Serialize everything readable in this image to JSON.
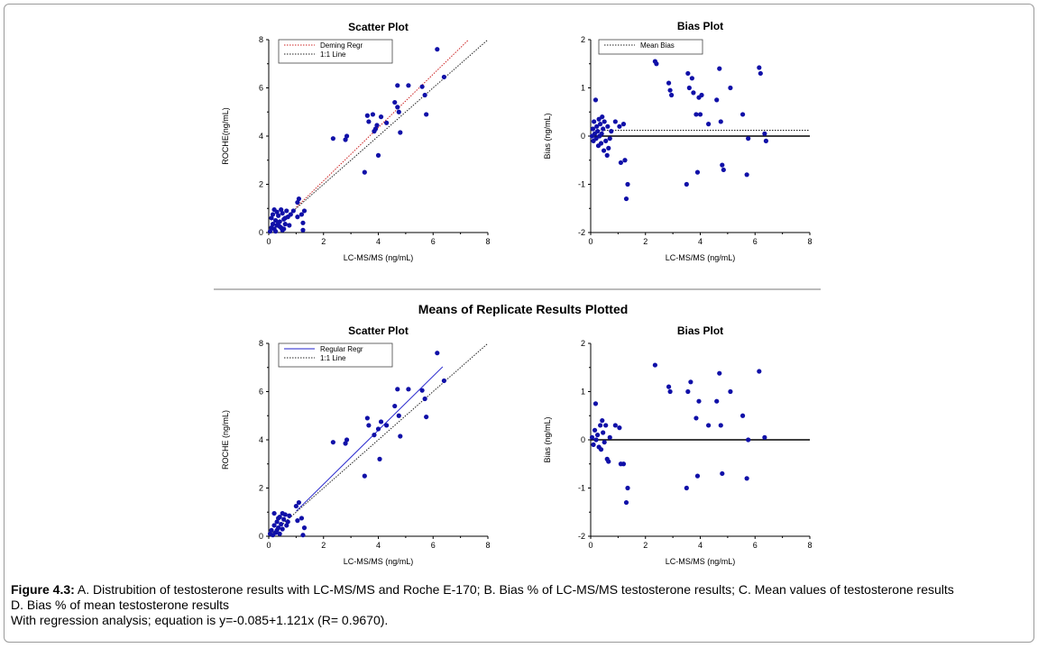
{
  "section_title": "Means of Replicate Results Plotted",
  "caption": {
    "label": "Figure 4.3:",
    "text1": " A. Distrubition of testosterone results with LC-MS/MS and Roche E-170; B. Bias % of LC-MS/MS testosterone results; C. Mean values of testosterone results",
    "text2": "D. Bias % of mean testosterone results",
    "text3": "With regression analysis; equation is y=-0.085+1.121x (R= 0.9670)."
  },
  "colors": {
    "points": "#1010a8",
    "deming": "#cc2222",
    "regular": "#2222cc",
    "identity": "#222222"
  },
  "chart_data": [
    {
      "id": "A",
      "type": "scatter",
      "title": "Scatter Plot",
      "xlabel": "LC-MS/MS (ng/mL)",
      "ylabel": "ROCHE(ng/mL)",
      "xlim": [
        0,
        8
      ],
      "ylim": [
        0,
        8
      ],
      "xticks": [
        "0",
        "2",
        "4",
        "6",
        "8"
      ],
      "yticks": [
        "0",
        "2",
        "4",
        "6",
        "8"
      ],
      "legend": [
        {
          "name": "Deming Regr",
          "style": "deming"
        },
        {
          "name": "1:1 Line",
          "style": "identity"
        }
      ],
      "lines": [
        {
          "style": "deming",
          "x1": 1.0,
          "y1": 1.04,
          "x2": 7.3,
          "y2": 8.0
        },
        {
          "style": "identity",
          "x1": 0,
          "y1": 0,
          "x2": 8,
          "y2": 8
        }
      ],
      "points": [
        [
          0.05,
          0.05
        ],
        [
          0.1,
          0.2
        ],
        [
          0.15,
          0.35
        ],
        [
          0.2,
          0.15
        ],
        [
          0.25,
          0.5
        ],
        [
          0.1,
          0.6
        ],
        [
          0.3,
          0.3
        ],
        [
          0.35,
          0.7
        ],
        [
          0.4,
          0.45
        ],
        [
          0.45,
          0.2
        ],
        [
          0.5,
          0.8
        ],
        [
          0.55,
          0.55
        ],
        [
          0.6,
          0.35
        ],
        [
          0.65,
          0.9
        ],
        [
          0.7,
          0.65
        ],
        [
          0.2,
          0.95
        ],
        [
          0.3,
          0.85
        ],
        [
          0.4,
          0.25
        ],
        [
          0.5,
          0.1
        ],
        [
          0.15,
          0.75
        ],
        [
          0.25,
          0.05
        ],
        [
          0.35,
          0.4
        ],
        [
          0.6,
          0.6
        ],
        [
          0.75,
          0.3
        ],
        [
          0.8,
          0.75
        ],
        [
          0.9,
          0.9
        ],
        [
          0.45,
          0.95
        ],
        [
          0.55,
          0.15
        ],
        [
          1.05,
          1.25
        ],
        [
          1.1,
          1.4
        ],
        [
          1.05,
          0.65
        ],
        [
          1.2,
          0.75
        ],
        [
          1.25,
          0.1
        ],
        [
          1.25,
          0.4
        ],
        [
          1.3,
          0.9
        ],
        [
          2.35,
          3.9
        ],
        [
          2.8,
          3.85
        ],
        [
          2.85,
          4.0
        ],
        [
          3.5,
          2.5
        ],
        [
          3.6,
          4.85
        ],
        [
          3.65,
          4.6
        ],
        [
          3.8,
          4.9
        ],
        [
          3.9,
          4.3
        ],
        [
          3.95,
          4.45
        ],
        [
          4.0,
          3.2
        ],
        [
          4.1,
          4.8
        ],
        [
          4.3,
          4.55
        ],
        [
          4.6,
          5.4
        ],
        [
          4.7,
          6.1
        ],
        [
          4.75,
          5.0
        ],
        [
          4.8,
          4.15
        ],
        [
          5.1,
          6.1
        ],
        [
          5.6,
          6.05
        ],
        [
          5.7,
          5.7
        ],
        [
          5.75,
          4.9
        ],
        [
          6.15,
          7.6
        ],
        [
          6.4,
          6.45
        ],
        [
          3.85,
          4.2
        ],
        [
          4.7,
          5.2
        ]
      ]
    },
    {
      "id": "B",
      "type": "scatter",
      "title": "Bias Plot",
      "xlabel": "LC-MS/MS (ng/mL)",
      "ylabel": "Bias (ng/mL)",
      "xlim": [
        0,
        8
      ],
      "ylim": [
        -2,
        2
      ],
      "xticks": [
        "0",
        "2",
        "4",
        "6",
        "8"
      ],
      "yticks": [
        "-2",
        "-1",
        "0",
        "1",
        "2"
      ],
      "legend": [
        {
          "name": "Mean Bias",
          "style": "identity"
        }
      ],
      "hlines": [
        {
          "y": 0,
          "style": "solid"
        },
        {
          "y": 0.12,
          "style": "dotted"
        }
      ],
      "points": [
        [
          0.05,
          0.0
        ],
        [
          0.08,
          0.15
        ],
        [
          0.1,
          -0.1
        ],
        [
          0.12,
          0.3
        ],
        [
          0.15,
          0.05
        ],
        [
          0.18,
          0.75
        ],
        [
          0.2,
          -0.05
        ],
        [
          0.22,
          0.2
        ],
        [
          0.25,
          0.1
        ],
        [
          0.28,
          -0.2
        ],
        [
          0.3,
          0.35
        ],
        [
          0.32,
          0.0
        ],
        [
          0.35,
          0.25
        ],
        [
          0.38,
          -0.15
        ],
        [
          0.4,
          0.05
        ],
        [
          0.42,
          0.4
        ],
        [
          0.45,
          0.15
        ],
        [
          0.48,
          -0.3
        ],
        [
          0.5,
          0.3
        ],
        [
          0.55,
          -0.1
        ],
        [
          0.6,
          -0.4
        ],
        [
          0.62,
          0.2
        ],
        [
          0.65,
          -0.25
        ],
        [
          0.7,
          -0.05
        ],
        [
          0.75,
          0.1
        ],
        [
          0.9,
          0.3
        ],
        [
          1.05,
          0.2
        ],
        [
          1.1,
          -0.55
        ],
        [
          1.2,
          0.25
        ],
        [
          1.25,
          -0.5
        ],
        [
          1.3,
          -1.3
        ],
        [
          1.35,
          -1.0
        ],
        [
          2.35,
          1.55
        ],
        [
          2.4,
          1.5
        ],
        [
          2.85,
          1.1
        ],
        [
          2.9,
          0.95
        ],
        [
          2.95,
          0.85
        ],
        [
          3.5,
          -1.0
        ],
        [
          3.55,
          1.3
        ],
        [
          3.6,
          1.0
        ],
        [
          3.7,
          1.2
        ],
        [
          3.75,
          0.9
        ],
        [
          3.85,
          0.45
        ],
        [
          3.9,
          -0.75
        ],
        [
          3.95,
          0.8
        ],
        [
          4.0,
          0.45
        ],
        [
          4.05,
          0.85
        ],
        [
          4.3,
          0.25
        ],
        [
          4.6,
          0.75
        ],
        [
          4.7,
          1.4
        ],
        [
          4.75,
          0.3
        ],
        [
          4.8,
          -0.6
        ],
        [
          4.85,
          -0.7
        ],
        [
          5.1,
          1.0
        ],
        [
          5.55,
          0.45
        ],
        [
          5.7,
          -0.8
        ],
        [
          5.75,
          -0.05
        ],
        [
          6.15,
          1.42
        ],
        [
          6.2,
          1.3
        ],
        [
          6.35,
          0.05
        ],
        [
          6.4,
          -0.1
        ]
      ]
    },
    {
      "id": "C",
      "type": "scatter",
      "title": "Scatter  Plot",
      "xlabel": "LC-MS/MS (ng/mL)",
      "ylabel": "ROCHE (ng/mL)",
      "xlim": [
        0,
        8
      ],
      "ylim": [
        0,
        8
      ],
      "xticks": [
        "0",
        "2",
        "4",
        "6",
        "8"
      ],
      "yticks": [
        "0",
        "2",
        "4",
        "6",
        "8"
      ],
      "legend": [
        {
          "name": "Regular Regr",
          "style": "regular"
        },
        {
          "name": "1:1 Line",
          "style": "identity"
        }
      ],
      "lines": [
        {
          "style": "regular",
          "x1": 1.0,
          "y1": 1.04,
          "x2": 6.35,
          "y2": 7.03
        },
        {
          "style": "identity",
          "x1": 0,
          "y1": 0,
          "x2": 8,
          "y2": 8
        }
      ],
      "points": [
        [
          0.05,
          0.1
        ],
        [
          0.1,
          0.25
        ],
        [
          0.15,
          0.05
        ],
        [
          0.2,
          0.45
        ],
        [
          0.25,
          0.15
        ],
        [
          0.3,
          0.6
        ],
        [
          0.35,
          0.35
        ],
        [
          0.4,
          0.8
        ],
        [
          0.45,
          0.5
        ],
        [
          0.5,
          0.3
        ],
        [
          0.55,
          0.7
        ],
        [
          0.6,
          0.9
        ],
        [
          0.65,
          0.45
        ],
        [
          0.7,
          0.6
        ],
        [
          0.75,
          0.85
        ],
        [
          0.2,
          0.95
        ],
        [
          0.3,
          0.25
        ],
        [
          0.4,
          0.1
        ],
        [
          0.5,
          0.95
        ],
        [
          0.35,
          0.75
        ],
        [
          1.0,
          1.25
        ],
        [
          1.1,
          1.4
        ],
        [
          1.05,
          0.65
        ],
        [
          1.2,
          0.75
        ],
        [
          1.25,
          0.05
        ],
        [
          1.3,
          0.35
        ],
        [
          2.35,
          3.9
        ],
        [
          2.8,
          3.85
        ],
        [
          2.85,
          4.0
        ],
        [
          3.5,
          2.5
        ],
        [
          3.6,
          4.9
        ],
        [
          3.65,
          4.6
        ],
        [
          3.85,
          4.2
        ],
        [
          4.0,
          4.45
        ],
        [
          4.05,
          3.2
        ],
        [
          4.1,
          4.75
        ],
        [
          4.3,
          4.6
        ],
        [
          4.6,
          5.4
        ],
        [
          4.7,
          6.1
        ],
        [
          4.75,
          5.0
        ],
        [
          4.8,
          4.15
        ],
        [
          5.1,
          6.1
        ],
        [
          5.6,
          6.05
        ],
        [
          5.7,
          5.7
        ],
        [
          5.75,
          4.95
        ],
        [
          6.15,
          7.6
        ],
        [
          6.4,
          6.45
        ]
      ]
    },
    {
      "id": "D",
      "type": "scatter",
      "title": "Bias Plot",
      "xlabel": "LC-MS/MS (ng/mL)",
      "ylabel": "Bias (ng/mL)",
      "xlim": [
        0,
        8
      ],
      "ylim": [
        -2,
        2
      ],
      "xticks": [
        "0",
        "2",
        "4",
        "6",
        "8"
      ],
      "yticks": [
        "-2",
        "-1",
        "0",
        "1",
        "2"
      ],
      "legend": [],
      "hlines": [
        {
          "y": 0,
          "style": "solid"
        }
      ],
      "points": [
        [
          0.05,
          0.05
        ],
        [
          0.1,
          -0.1
        ],
        [
          0.15,
          0.2
        ],
        [
          0.18,
          0.75
        ],
        [
          0.2,
          0.0
        ],
        [
          0.25,
          0.1
        ],
        [
          0.3,
          -0.15
        ],
        [
          0.35,
          0.3
        ],
        [
          0.38,
          -0.2
        ],
        [
          0.42,
          0.4
        ],
        [
          0.45,
          0.15
        ],
        [
          0.5,
          -0.05
        ],
        [
          0.55,
          0.3
        ],
        [
          0.6,
          -0.4
        ],
        [
          0.65,
          -0.45
        ],
        [
          0.7,
          0.05
        ],
        [
          0.9,
          0.3
        ],
        [
          1.05,
          0.25
        ],
        [
          1.1,
          -0.5
        ],
        [
          1.2,
          -0.5
        ],
        [
          1.3,
          -1.3
        ],
        [
          1.35,
          -1.0
        ],
        [
          2.35,
          1.55
        ],
        [
          2.85,
          1.1
        ],
        [
          2.9,
          1.0
        ],
        [
          3.5,
          -1.0
        ],
        [
          3.55,
          1.0
        ],
        [
          3.65,
          1.2
        ],
        [
          3.85,
          0.45
        ],
        [
          3.9,
          -0.75
        ],
        [
          3.95,
          0.8
        ],
        [
          4.3,
          0.3
        ],
        [
          4.6,
          0.8
        ],
        [
          4.7,
          1.38
        ],
        [
          4.75,
          0.3
        ],
        [
          4.8,
          -0.7
        ],
        [
          5.1,
          1.0
        ],
        [
          5.55,
          0.5
        ],
        [
          5.7,
          -0.8
        ],
        [
          5.75,
          0.0
        ],
        [
          6.15,
          1.42
        ],
        [
          6.35,
          0.05
        ]
      ]
    }
  ]
}
